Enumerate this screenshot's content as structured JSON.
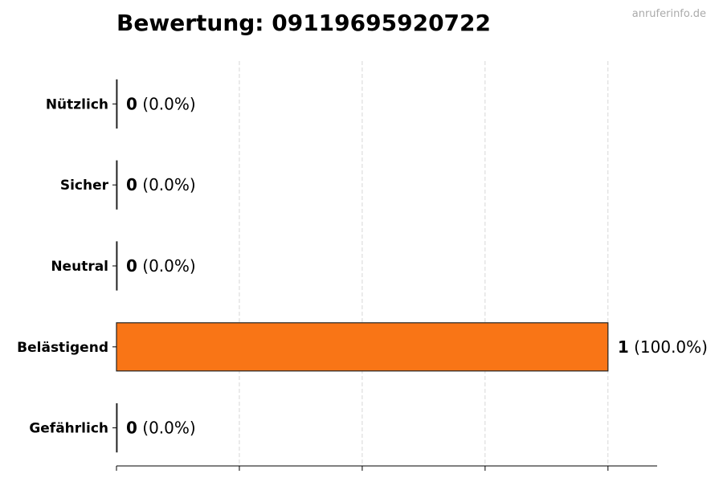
{
  "watermark": "anruferinfo.de",
  "chart_data": {
    "type": "bar",
    "orientation": "horizontal",
    "title": "Bewertung: 09119695920722",
    "xlabel": "",
    "ylabel": "",
    "categories": [
      "Nützlich",
      "Sicher",
      "Neutral",
      "Belästigend",
      "Gefährlich"
    ],
    "values": [
      0,
      0,
      0,
      1,
      0
    ],
    "value_labels": [
      "0",
      "0",
      "0",
      "1",
      "0"
    ],
    "percent_labels": [
      "(0.0%)",
      "(0.0%)",
      "(0.0%)",
      "(100.0%)",
      "(0.0%)"
    ],
    "xlim": [
      0,
      1.1
    ],
    "xticks": [
      0,
      0.25,
      0.5,
      0.75,
      1
    ],
    "xtick_labels_shown": false,
    "grid": "vertical dashed",
    "bar_color": "#f97516",
    "bar_edge_color": "#222222"
  }
}
